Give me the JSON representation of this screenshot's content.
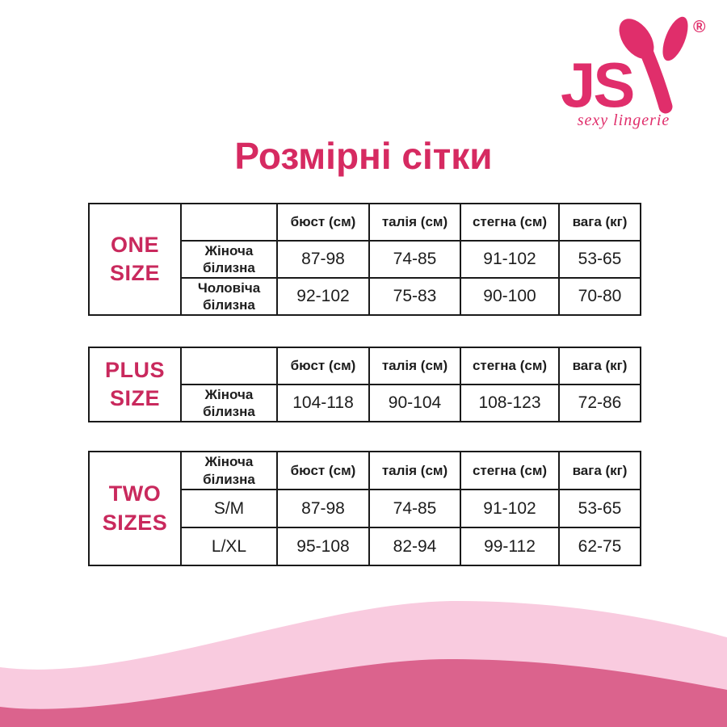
{
  "logo": {
    "text_js": "JS",
    "brand": "JSY",
    "registered": "®",
    "tagline": "sexy lingerie"
  },
  "title": "Розмірні сітки",
  "colors": {
    "brand_pink": "#e02e6b",
    "title_pink": "#d62a61",
    "size_label_pink": "#c9295d",
    "table_border": "#1a1a1a",
    "table_text": "#1d1d1d",
    "wave_light": "#f9cbdf",
    "wave_dark": "#db638d"
  },
  "tables": [
    {
      "size_label": "ONE SIZE",
      "header_row_label": "",
      "columns": [
        "бюст (см)",
        "талія (см)",
        "стегна (см)",
        "вага (кг)"
      ],
      "rows": [
        {
          "label": "Жіноча білизна",
          "values": [
            "87-98",
            "74-85",
            "91-102",
            "53-65"
          ]
        },
        {
          "label": "Чоловіча білизна",
          "values": [
            "92-102",
            "75-83",
            "90-100",
            "70-80"
          ]
        }
      ]
    },
    {
      "size_label": "PLUS SIZE",
      "header_row_label": "",
      "columns": [
        "бюст (см)",
        "талія (см)",
        "стегна (см)",
        "вага (кг)"
      ],
      "rows": [
        {
          "label": "Жіноча білизна",
          "values": [
            "104-118",
            "90-104",
            "108-123",
            "72-86"
          ]
        }
      ]
    },
    {
      "size_label": "TWO SIZES",
      "header_row_label": "Жіноча білизна",
      "columns": [
        "бюст (см)",
        "талія (см)",
        "стегна (см)",
        "вага (кг)"
      ],
      "rows": [
        {
          "label": "S/M",
          "values": [
            "87-98",
            "74-85",
            "91-102",
            "53-65"
          ]
        },
        {
          "label": "L/XL",
          "values": [
            "95-108",
            "82-94",
            "99-112",
            "62-75"
          ]
        }
      ]
    }
  ]
}
